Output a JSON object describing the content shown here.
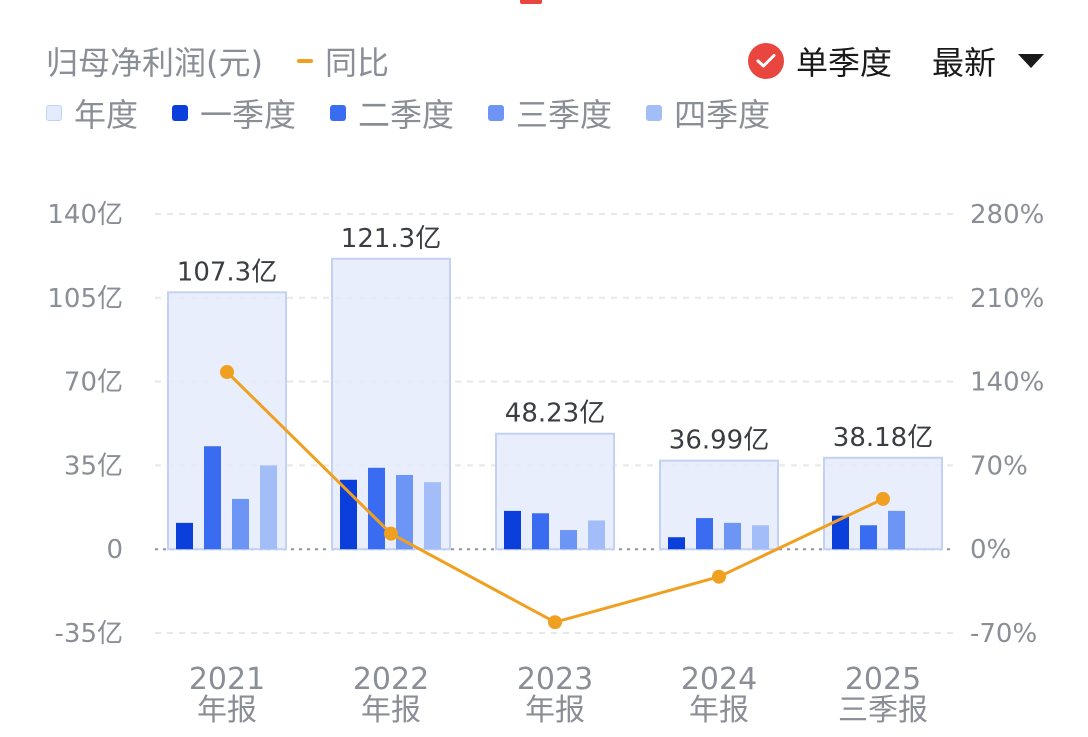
{
  "header": {
    "title": "归母净利润(元)",
    "yoy_legend": "同比",
    "single_quarter_label": "单季度",
    "latest_label": "最新"
  },
  "legend": [
    {
      "label": "年度",
      "color": "#e4ebfc",
      "border": "#c2d1f4"
    },
    {
      "label": "一季度",
      "color": "#0a3fdc"
    },
    {
      "label": "二季度",
      "color": "#3a6cf2"
    },
    {
      "label": "三季度",
      "color": "#6d95f5"
    },
    {
      "label": "四季度",
      "color": "#a3bdf9"
    }
  ],
  "colors": {
    "accent_red": "#e9463f",
    "yoy_line": "#f0a020",
    "annual_fill": "#e4ebfc",
    "annual_border": "#c2d1f4"
  },
  "chart_data": {
    "type": "bar",
    "categories": [
      {
        "year": "2021",
        "period": "年报"
      },
      {
        "year": "2022",
        "period": "年报"
      },
      {
        "year": "2023",
        "period": "年报"
      },
      {
        "year": "2024",
        "period": "年报"
      },
      {
        "year": "2025",
        "period": "三季报"
      }
    ],
    "annual": {
      "values": [
        107.3,
        121.3,
        48.23,
        36.99,
        38.18
      ],
      "labels": [
        "107.3亿",
        "121.3亿",
        "48.23亿",
        "36.99亿",
        "38.18亿"
      ]
    },
    "quarters": [
      {
        "name": "一季度",
        "values": [
          11,
          29,
          16,
          5,
          14
        ]
      },
      {
        "name": "二季度",
        "values": [
          43,
          34,
          15,
          13,
          10
        ]
      },
      {
        "name": "三季度",
        "values": [
          21,
          31,
          8,
          11,
          16
        ]
      },
      {
        "name": "四季度",
        "values": [
          35,
          28,
          12,
          10,
          null
        ]
      }
    ],
    "yoy": {
      "name": "同比",
      "values": [
        148,
        13,
        -61,
        -23,
        42
      ]
    },
    "y_left": {
      "ticks": [
        140,
        105,
        70,
        35,
        0,
        -35
      ],
      "tick_labels": [
        "140亿",
        "105亿",
        "70亿",
        "35亿",
        "0",
        "-35亿"
      ],
      "range": [
        -35,
        140
      ]
    },
    "y_right": {
      "ticks": [
        280,
        210,
        140,
        70,
        0,
        -70
      ],
      "tick_labels": [
        "280%",
        "210%",
        "140%",
        "70%",
        "0%",
        "-70%"
      ],
      "range": [
        -70,
        280
      ]
    },
    "grid": true
  }
}
